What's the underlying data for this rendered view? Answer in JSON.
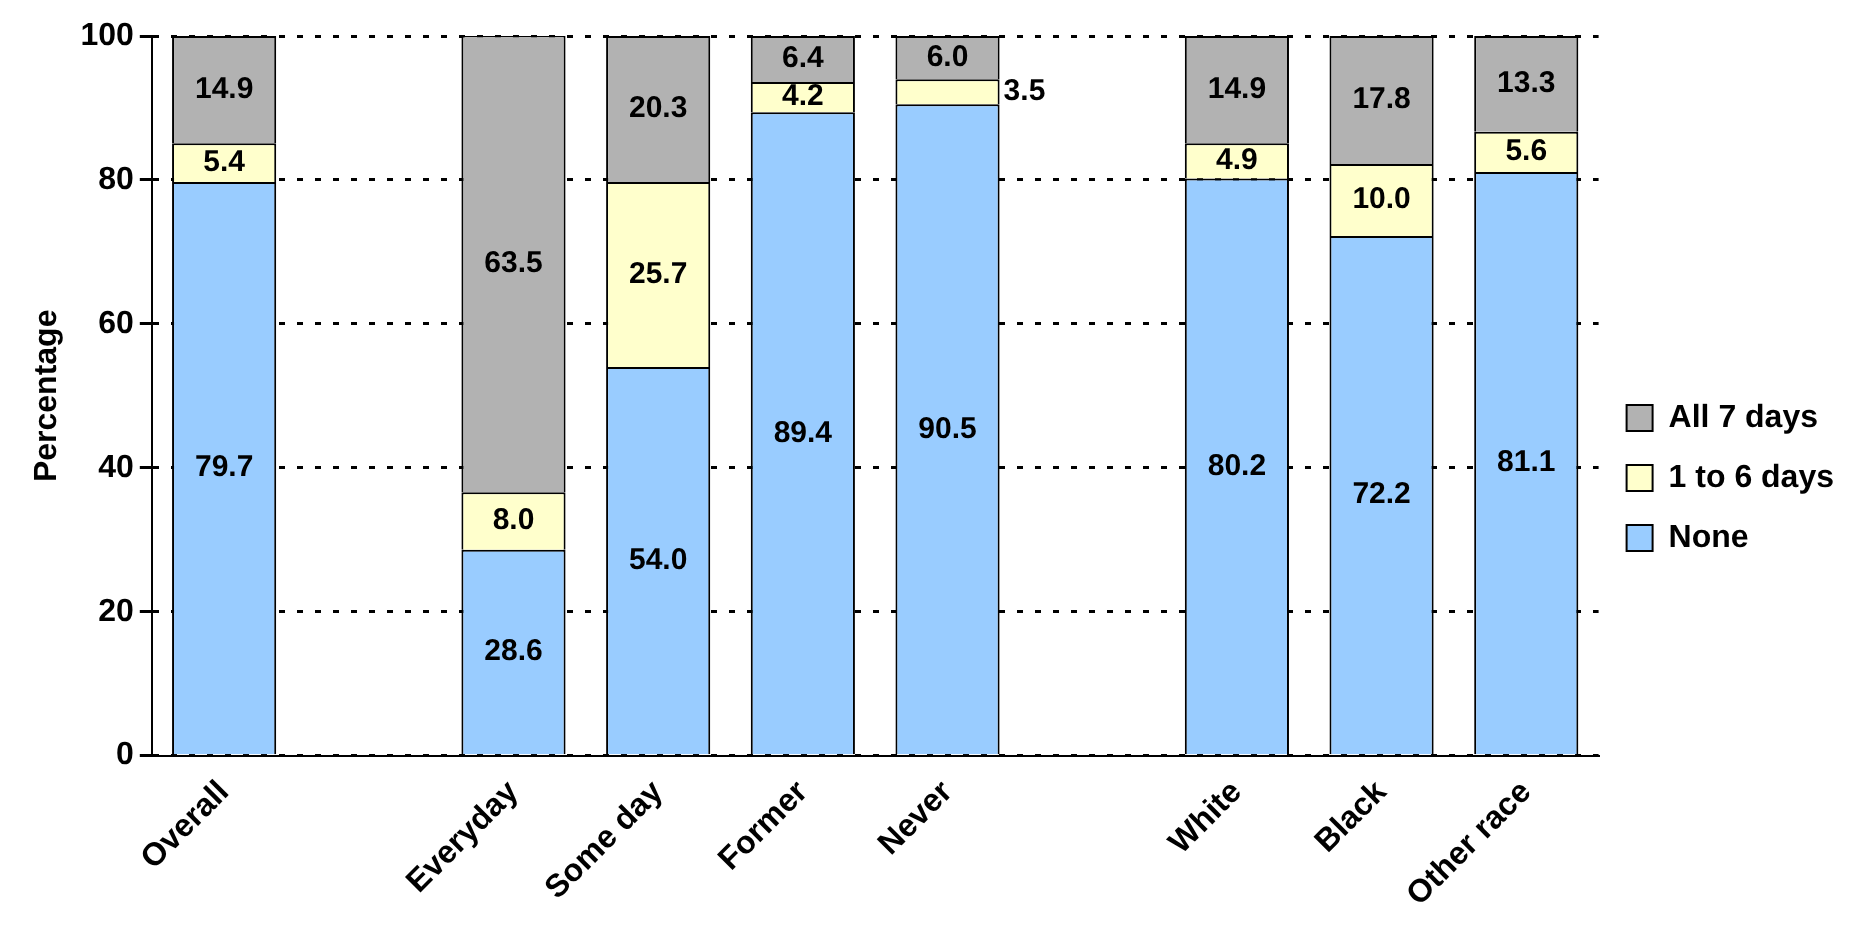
{
  "chart_data": {
    "type": "bar",
    "stacked": true,
    "ylabel": "Percentage",
    "categories": [
      "Overall",
      null,
      "Everyday",
      "Some day",
      "Former",
      "Never",
      null,
      "White",
      "Black",
      "Other race"
    ],
    "series": [
      {
        "name": "None",
        "color": "#99ccff",
        "values": [
          79.7,
          null,
          28.6,
          54.0,
          89.4,
          90.5,
          null,
          80.2,
          72.2,
          81.1
        ],
        "value_labels": [
          "79.7",
          null,
          "28.6",
          "54.0",
          "89.4",
          "90.5",
          null,
          "80.2",
          "72.2",
          "81.1"
        ]
      },
      {
        "name": "1 to 6 days",
        "color": "#ffffcc",
        "values": [
          5.4,
          null,
          8.0,
          25.7,
          4.2,
          3.5,
          null,
          4.9,
          10.0,
          5.6
        ],
        "value_labels": [
          "5.4",
          null,
          "8.0",
          "25.7",
          "4.2",
          "3.5",
          null,
          "4.9",
          "10.0",
          "5.6"
        ]
      },
      {
        "name": "All 7 days",
        "color": "#b2b2b2",
        "values": [
          14.9,
          null,
          63.5,
          20.3,
          6.4,
          6.0,
          null,
          14.9,
          17.8,
          13.3
        ],
        "value_labels": [
          "14.9",
          null,
          "63.5",
          "20.3",
          "6.4",
          "6.0",
          null,
          "14.9",
          "17.8",
          "13.3"
        ]
      }
    ],
    "ylim": [
      0,
      100
    ],
    "yticks": [
      0,
      20,
      40,
      60,
      80,
      100
    ],
    "grid": "y",
    "legend": "right"
  }
}
